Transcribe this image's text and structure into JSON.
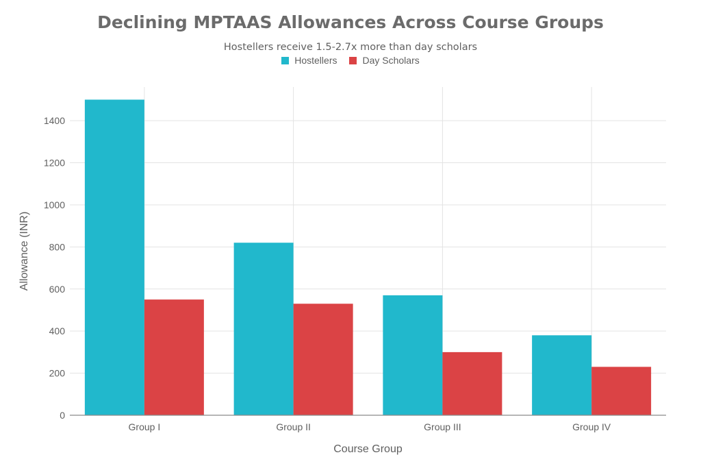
{
  "chart_data": {
    "type": "bar",
    "title": "Declining MPTAAS Allowances Across Course Groups",
    "subtitle": "Hostellers receive 1.5-2.7x more than day scholars",
    "xlabel": "Course Group",
    "ylabel": "Allowance (INR)",
    "categories": [
      "Group I",
      "Group II",
      "Group III",
      "Group IV"
    ],
    "series": [
      {
        "name": "Hostellers",
        "color": "#21b8cc",
        "values": [
          1500,
          820,
          570,
          380
        ]
      },
      {
        "name": "Day Scholars",
        "color": "#db4345",
        "values": [
          550,
          530,
          300,
          230
        ]
      }
    ],
    "ylim": [
      0,
      1560
    ],
    "yticks": [
      0,
      200,
      400,
      600,
      800,
      1000,
      1200,
      1400
    ],
    "grid": true,
    "legend_position": "top-center"
  }
}
